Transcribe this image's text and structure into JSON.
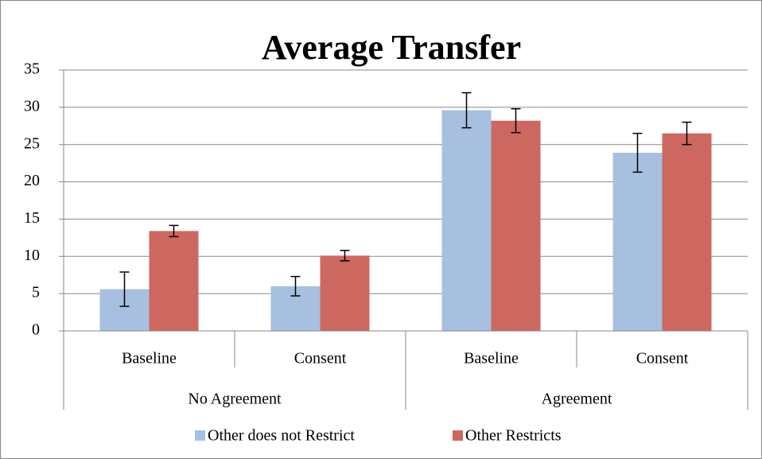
{
  "chart_data": {
    "type": "bar",
    "title": "Average Transfer",
    "groups": [
      {
        "label": "No Agreement",
        "categories": [
          "Baseline",
          "Consent"
        ]
      },
      {
        "label": "Agreement",
        "categories": [
          "Baseline",
          "Consent"
        ]
      }
    ],
    "series": [
      {
        "name": "Other does not Restrict",
        "color": "#a7c0df",
        "values": [
          5.6,
          6.0,
          29.6,
          23.9
        ],
        "errors": [
          2.3,
          1.3,
          2.35,
          2.6
        ]
      },
      {
        "name": "Other Restricts",
        "color": "#cd6860",
        "values": [
          13.4,
          10.1,
          28.2,
          26.5
        ],
        "errors": [
          0.75,
          0.7,
          1.6,
          1.5
        ]
      }
    ],
    "ylim": [
      0,
      35
    ],
    "yticks": [
      0,
      5,
      10,
      15,
      20,
      25,
      30,
      35
    ],
    "grid": true,
    "legend": "bottom"
  }
}
